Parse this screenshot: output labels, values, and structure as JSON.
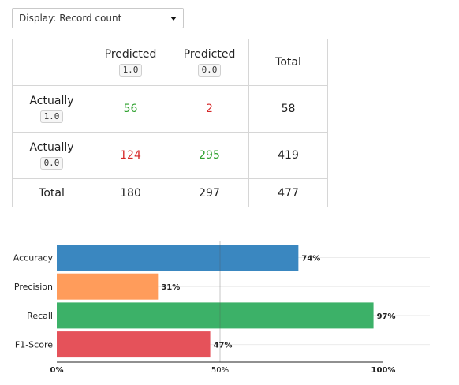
{
  "display": {
    "label": "Display: Record count"
  },
  "matrix": {
    "header": {
      "col1_word": "Predicted",
      "col1_code": "1.0",
      "col2_word": "Predicted",
      "col2_code": "0.0",
      "col3": "Total"
    },
    "rows": [
      {
        "word": "Actually",
        "code": "1.0",
        "v1": "56",
        "v2": "2",
        "total": "58"
      },
      {
        "word": "Actually",
        "code": "0.0",
        "v1": "124",
        "v2": "295",
        "total": "419"
      }
    ],
    "totals": {
      "label": "Total",
      "v1": "180",
      "v2": "297",
      "total": "477"
    }
  },
  "colors": {
    "correct": "#2ca02c",
    "incorrect": "#d62728"
  },
  "chart_data": {
    "type": "bar",
    "orientation": "horizontal",
    "categories": [
      "Accuracy",
      "Precision",
      "Recall",
      "F1-Score"
    ],
    "values": [
      74,
      31,
      97,
      47
    ],
    "value_labels": [
      "74%",
      "31%",
      "97%",
      "47%"
    ],
    "colors": [
      "#3a87c0",
      "#ff9c5b",
      "#3cb168",
      "#e5525a"
    ],
    "xlim": [
      0,
      100
    ],
    "xticks": [
      {
        "value": 0,
        "label": "0%"
      },
      {
        "value": 50,
        "label": "50%"
      },
      {
        "value": 100,
        "label": "100%"
      }
    ],
    "grid": true
  }
}
